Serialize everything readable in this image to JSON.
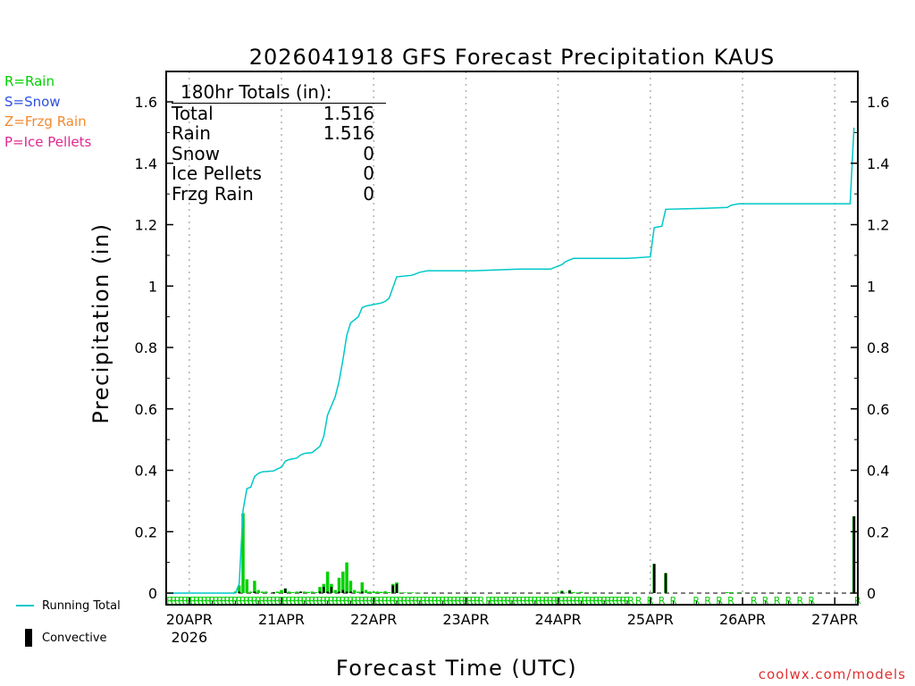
{
  "legend_types": [
    {
      "label": "R=Rain",
      "color": "#00d000"
    },
    {
      "label": "S=Snow",
      "color": "#3050e0"
    },
    {
      "label": "Z=Frzg Rain",
      "color": "#f08a30"
    },
    {
      "label": "P=Ice Pellets",
      "color": "#e02890"
    }
  ],
  "totals_box": {
    "header": "180hr Totals (in):",
    "rows": [
      {
        "label": "Total",
        "value": "1.516"
      },
      {
        "label": "Rain",
        "value": "1.516"
      },
      {
        "label": "Snow",
        "value": "0"
      },
      {
        "label": "Ice Pellets",
        "value": "0"
      },
      {
        "label": "Frzg Rain",
        "value": "0"
      }
    ]
  },
  "bottom_legend": {
    "running_total": "Running Total",
    "convective": "Convective"
  },
  "credit": "coolwx.com/models",
  "colors": {
    "rain": "#00d000",
    "running_total": "#00c8c8",
    "convective": "#000000"
  },
  "chart_data": {
    "type": "bar",
    "title": "2026041918 GFS Forecast Precipitation KAUS",
    "xlabel": "Forecast Time (UTC)",
    "ylabel": "Precipitation (in)",
    "x_unit": "forecast hour",
    "xlim": [
      0,
      180
    ],
    "ylim": [
      -0.04,
      1.66
    ],
    "yticks": [
      "0",
      "0.2",
      "0.4",
      "0.6",
      "0.8",
      "1",
      "1.2",
      "1.4",
      "1.6"
    ],
    "ytick_values": [
      0,
      0.2,
      0.4,
      0.6,
      0.8,
      1,
      1.2,
      1.4,
      1.6
    ],
    "xticks": [
      {
        "hour": 6,
        "label": "20APR",
        "sublabel": "2026"
      },
      {
        "hour": 30,
        "label": "21APR"
      },
      {
        "hour": 54,
        "label": "22APR"
      },
      {
        "hour": 78,
        "label": "23APR"
      },
      {
        "hour": 102,
        "label": "24APR"
      },
      {
        "hour": 126,
        "label": "25APR"
      },
      {
        "hour": 150,
        "label": "26APR"
      },
      {
        "hour": 174,
        "label": "27APR"
      }
    ],
    "series": [
      {
        "name": "Rain (hourly)",
        "points": [
          [
            18,
            0.005
          ],
          [
            19,
            0.025
          ],
          [
            20,
            0.26
          ],
          [
            21,
            0.045
          ],
          [
            22,
            0.005
          ],
          [
            23,
            0.04
          ],
          [
            24,
            0.01
          ],
          [
            25,
            0.005
          ],
          [
            26,
            0.005
          ],
          [
            28,
            0.003
          ],
          [
            29,
            0.005
          ],
          [
            30,
            0.01
          ],
          [
            31,
            0.015
          ],
          [
            32,
            0.005
          ],
          [
            33,
            0.003
          ],
          [
            34,
            0.005
          ],
          [
            35,
            0.005
          ],
          [
            36,
            0.005
          ],
          [
            37,
            0.004
          ],
          [
            38,
            0.005
          ],
          [
            39,
            0.003
          ],
          [
            40,
            0.02
          ],
          [
            41,
            0.03
          ],
          [
            42,
            0.07
          ],
          [
            43,
            0.03
          ],
          [
            44,
            0.01
          ],
          [
            45,
            0.05
          ],
          [
            46,
            0.07
          ],
          [
            47,
            0.1
          ],
          [
            48,
            0.04
          ],
          [
            49,
            0.01
          ],
          [
            50,
            0.005
          ],
          [
            51,
            0.035
          ],
          [
            52,
            0.01
          ],
          [
            53,
            0.005
          ],
          [
            54,
            0.005
          ],
          [
            55,
            0.005
          ],
          [
            56,
            0.004
          ],
          [
            57,
            0.006
          ],
          [
            58,
            0.003
          ],
          [
            59,
            0.03
          ],
          [
            60,
            0.035
          ],
          [
            61,
            0.002
          ],
          [
            62,
            0.002
          ],
          [
            63,
            0.002
          ],
          [
            64,
            0.002
          ],
          [
            65,
            0.001
          ],
          [
            66,
            0.001
          ],
          [
            101,
            0.001
          ],
          [
            102,
            0.002
          ],
          [
            103,
            0.008
          ],
          [
            104,
            0.001
          ],
          [
            105,
            0.01
          ],
          [
            106,
            0.003
          ],
          [
            107,
            0.002
          ],
          [
            108,
            0.004
          ],
          [
            127,
            0.095
          ],
          [
            130,
            0.065
          ],
          [
            146,
            0.003
          ],
          [
            147,
            0.003
          ],
          [
            149,
            0.003
          ],
          [
            179,
            0.25
          ]
        ]
      },
      {
        "name": "Convective",
        "points": [
          [
            19,
            0.005
          ],
          [
            23,
            0.005
          ],
          [
            28,
            0.003
          ],
          [
            31,
            0.015
          ],
          [
            35,
            0.005
          ],
          [
            40,
            0.005
          ],
          [
            41,
            0.02
          ],
          [
            42,
            0.005
          ],
          [
            43,
            0.02
          ],
          [
            45,
            0.005
          ],
          [
            46,
            0.01
          ],
          [
            47,
            0.005
          ],
          [
            48,
            0.005
          ],
          [
            51,
            0.005
          ],
          [
            59,
            0.025
          ],
          [
            60,
            0.03
          ],
          [
            103,
            0.005
          ],
          [
            105,
            0.008
          ],
          [
            127,
            0.095
          ],
          [
            130,
            0.065
          ],
          [
            179,
            0.25
          ]
        ]
      },
      {
        "name": "Running Total",
        "points": [
          [
            0,
            0
          ],
          [
            18,
            0
          ],
          [
            19,
            0.03
          ],
          [
            20,
            0.27
          ],
          [
            21,
            0.34
          ],
          [
            22,
            0.345
          ],
          [
            23,
            0.38
          ],
          [
            24,
            0.39
          ],
          [
            25,
            0.395
          ],
          [
            28,
            0.398
          ],
          [
            29,
            0.405
          ],
          [
            30,
            0.41
          ],
          [
            31,
            0.43
          ],
          [
            32,
            0.435
          ],
          [
            34,
            0.44
          ],
          [
            35,
            0.45
          ],
          [
            36,
            0.455
          ],
          [
            38,
            0.458
          ],
          [
            40,
            0.478
          ],
          [
            41,
            0.51
          ],
          [
            42,
            0.58
          ],
          [
            43,
            0.61
          ],
          [
            44,
            0.64
          ],
          [
            45,
            0.69
          ],
          [
            46,
            0.76
          ],
          [
            47,
            0.84
          ],
          [
            48,
            0.88
          ],
          [
            49,
            0.89
          ],
          [
            50,
            0.9
          ],
          [
            51,
            0.93
          ],
          [
            52,
            0.935
          ],
          [
            54,
            0.94
          ],
          [
            56,
            0.945
          ],
          [
            57,
            0.95
          ],
          [
            58,
            0.96
          ],
          [
            59,
            0.995
          ],
          [
            60,
            1.03
          ],
          [
            64,
            1.035
          ],
          [
            66,
            1.045
          ],
          [
            68,
            1.05
          ],
          [
            80,
            1.05
          ],
          [
            92,
            1.055
          ],
          [
            100,
            1.055
          ],
          [
            102,
            1.065
          ],
          [
            103,
            1.07
          ],
          [
            104,
            1.08
          ],
          [
            106,
            1.09
          ],
          [
            120,
            1.09
          ],
          [
            126,
            1.095
          ],
          [
            127,
            1.19
          ],
          [
            129,
            1.195
          ],
          [
            130,
            1.25
          ],
          [
            140,
            1.253
          ],
          [
            146,
            1.256
          ],
          [
            147,
            1.263
          ],
          [
            149,
            1.268
          ],
          [
            178,
            1.268
          ],
          [
            179,
            1.516
          ]
        ]
      }
    ],
    "precip_type_markers": {
      "symbol": "R",
      "hours": [
        1,
        2,
        3,
        4,
        5,
        6,
        7,
        8,
        9,
        10,
        11,
        12,
        13,
        14,
        15,
        16,
        17,
        18,
        19,
        20,
        21,
        22,
        23,
        24,
        25,
        26,
        27,
        28,
        29,
        30,
        31,
        32,
        33,
        34,
        35,
        36,
        37,
        38,
        39,
        40,
        41,
        42,
        43,
        44,
        45,
        46,
        47,
        48,
        49,
        50,
        51,
        52,
        53,
        54,
        55,
        56,
        57,
        58,
        59,
        60,
        61,
        62,
        63,
        64,
        65,
        66,
        67,
        68,
        69,
        70,
        71,
        72,
        73,
        74,
        75,
        76,
        77,
        78,
        79,
        80,
        81,
        82,
        84,
        85,
        86,
        87,
        88,
        89,
        90,
        91,
        92,
        93,
        94,
        95,
        96,
        97,
        98,
        99,
        100,
        101,
        102,
        103,
        104,
        105,
        106,
        107,
        108,
        109,
        110,
        111,
        112,
        113,
        114,
        115,
        116,
        117,
        118,
        119,
        120,
        121,
        123,
        126,
        129,
        132,
        138,
        141,
        144,
        147,
        153,
        156,
        159,
        162,
        165,
        168,
        180
      ]
    }
  }
}
